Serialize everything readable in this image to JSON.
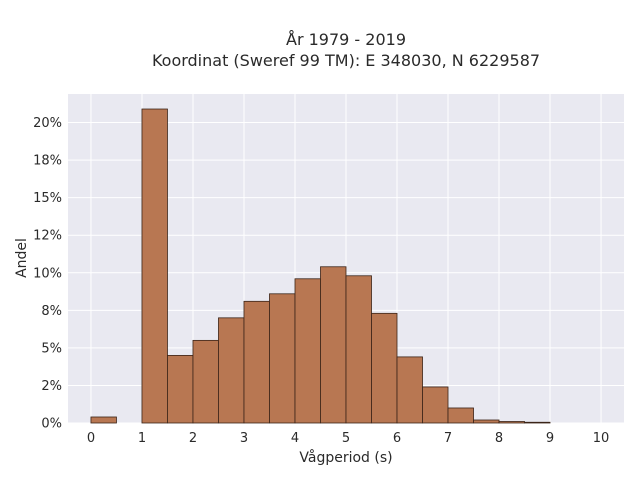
{
  "chart_data": {
    "type": "bar",
    "title_line1": "År 1979 - 2019",
    "title_line2": "Koordinat (Sweref 99 TM): E 348030, N 6229587",
    "xlabel": "Vågperiod (s)",
    "ylabel": "Andel",
    "bin_width": 0.5,
    "bin_starts": [
      0,
      0.5,
      1,
      1.5,
      2,
      2.5,
      3,
      3.5,
      4,
      4.5,
      5,
      5.5,
      6,
      6.5,
      7,
      7.5,
      8,
      8.5,
      9,
      9.5
    ],
    "values": [
      0.4,
      0,
      20.9,
      4.5,
      5.5,
      7.0,
      8.1,
      8.6,
      9.6,
      10.4,
      9.8,
      7.3,
      4.4,
      2.4,
      1.0,
      0.2,
      0.1,
      0.05,
      0,
      0
    ],
    "xlim": [
      -0.45,
      10.45
    ],
    "ylim": [
      0,
      21.9
    ],
    "x_ticks": [
      0,
      1,
      2,
      3,
      4,
      5,
      6,
      7,
      8,
      9,
      10
    ],
    "x_tick_labels": [
      "0",
      "1",
      "2",
      "3",
      "4",
      "5",
      "6",
      "7",
      "8",
      "9",
      "10"
    ],
    "y_ticks": [
      0,
      2.5,
      5,
      7.5,
      10,
      12.5,
      15,
      17.5,
      20
    ],
    "y_tick_labels": [
      "0%",
      "2%",
      "5%",
      "8%",
      "10%",
      "12%",
      "15%",
      "18%",
      "20%"
    ],
    "grid": true,
    "colors": {
      "bar_fill": "#b87752",
      "bar_edge": "#3b2418",
      "plot_bg": "#e9e9f1",
      "grid": "#ffffff"
    }
  }
}
